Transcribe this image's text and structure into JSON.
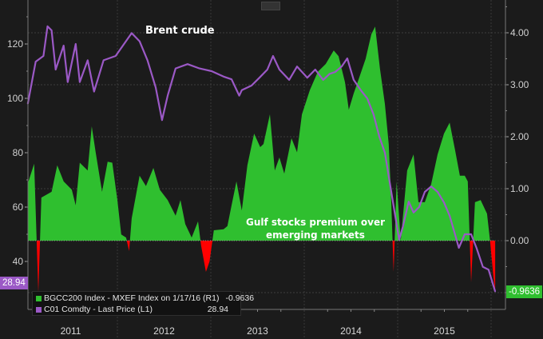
{
  "chart_data": {
    "type": "line+area",
    "title": "",
    "x_type": "date",
    "xlim": [
      "2011-01-01",
      "2016-01-31"
    ],
    "x_tick_labels": [
      "2011",
      "2012",
      "2013",
      "2014",
      "2015"
    ],
    "left_axis": {
      "ylim": [
        28,
        133
      ],
      "ticks": [
        40,
        60,
        80,
        100,
        120
      ]
    },
    "right_axis": {
      "ylim": [
        -1.32,
        4.62
      ],
      "ticks": [
        "4.00",
        "3.00",
        "2.00",
        "1.00",
        "0.00"
      ]
    },
    "grid": true,
    "annotations": [
      "Brent crude",
      "Gulf stocks premium over",
      "emerging markets"
    ],
    "series": [
      {
        "name": "BGCC200 Index - MXEF Index on 1/17/16 (R1)",
        "axis": "right",
        "type": "area",
        "color_positive": "#2fbf2f",
        "color_negative": "#ff0000",
        "last_value": "-0.9636",
        "x": [
          "2011-01-16",
          "2011-02-10",
          "2011-02-26",
          "2011-03-10",
          "2011-04-19",
          "2011-05-11",
          "2011-06-05",
          "2011-07-07",
          "2011-07-22",
          "2011-08-07",
          "2011-09-07",
          "2011-09-23",
          "2011-10-08",
          "2011-11-02",
          "2011-11-24",
          "2011-12-12",
          "2012-01-01",
          "2012-01-16",
          "2012-02-04",
          "2012-02-16",
          "2012-02-26",
          "2012-03-28",
          "2012-04-22",
          "2012-05-21",
          "2012-06-15",
          "2012-07-16",
          "2012-08-16",
          "2012-09-04",
          "2012-09-23",
          "2012-10-18",
          "2012-11-12",
          "2012-11-24",
          "2012-12-13",
          "2012-12-27",
          "2013-01-13",
          "2013-02-20",
          "2013-03-07",
          "2013-03-23",
          "2013-04-11",
          "2013-05-02",
          "2013-05-24",
          "2013-06-19",
          "2013-07-13",
          "2013-07-26",
          "2013-08-20",
          "2013-09-08",
          "2013-09-26",
          "2013-10-15",
          "2013-11-12",
          "2013-12-04",
          "2013-12-23",
          "2014-01-23",
          "2014-02-23",
          "2014-03-26",
          "2014-04-26",
          "2014-05-15",
          "2014-06-09",
          "2014-06-24",
          "2014-07-13",
          "2014-08-04",
          "2014-08-29",
          "2014-09-20",
          "2014-10-05",
          "2014-10-24",
          "2014-11-12",
          "2014-11-27",
          "2014-12-07",
          "2014-12-16",
          "2014-12-28",
          "2015-01-13",
          "2015-02-07",
          "2015-03-04",
          "2015-03-23",
          "2015-04-17",
          "2015-05-12",
          "2015-06-06",
          "2015-07-01",
          "2015-07-23",
          "2015-08-13",
          "2015-09-01",
          "2015-09-20",
          "2015-10-02",
          "2015-10-15",
          "2015-10-30",
          "2015-11-21",
          "2015-12-16",
          "2015-12-28",
          "2016-01-10",
          "2016-01-17"
        ],
        "values": [
          1.1,
          1.48,
          -1.0,
          0.83,
          0.94,
          1.45,
          1.14,
          0.98,
          0.68,
          1.5,
          1.35,
          2.2,
          1.7,
          0.94,
          1.52,
          1.5,
          0.78,
          0.12,
          0.06,
          -0.2,
          0.43,
          1.25,
          1.05,
          1.4,
          0.98,
          0.78,
          0.48,
          0.78,
          0.32,
          0.06,
          0.37,
          -0.1,
          -0.6,
          -0.4,
          0.2,
          0.22,
          0.28,
          0.68,
          1.14,
          0.58,
          1.45,
          2.06,
          1.8,
          1.86,
          2.43,
          1.35,
          1.6,
          1.29,
          1.97,
          1.7,
          2.43,
          2.9,
          3.25,
          3.4,
          3.66,
          3.55,
          3.05,
          2.52,
          2.83,
          3.14,
          3.5,
          3.97,
          4.12,
          3.3,
          2.63,
          1.86,
          0.74,
          -0.6,
          1.14,
          0.0,
          1.35,
          1.66,
          0.74,
          0.74,
          1.09,
          1.66,
          2.06,
          2.27,
          1.75,
          1.25,
          1.25,
          1.14,
          -0.8,
          0.74,
          0.78,
          0.52,
          0.0,
          -0.7,
          -0.9636
        ]
      },
      {
        "name": "C01 Comdty - Last Price (L1)",
        "axis": "left",
        "type": "line",
        "color": "#9b59c6",
        "last_value": "28.94",
        "x": [
          "2011-01-16",
          "2011-02-16",
          "2011-03-18",
          "2011-04-03",
          "2011-04-19",
          "2011-05-05",
          "2011-06-05",
          "2011-06-21",
          "2011-07-22",
          "2011-08-07",
          "2011-09-07",
          "2011-10-02",
          "2011-11-08",
          "2011-12-25",
          "2012-02-26",
          "2012-03-28",
          "2012-04-28",
          "2012-05-30",
          "2012-06-24",
          "2012-07-16",
          "2012-08-16",
          "2012-10-02",
          "2012-11-18",
          "2013-01-04",
          "2013-02-20",
          "2013-03-23",
          "2013-04-22",
          "2013-05-02",
          "2013-06-09",
          "2013-07-10",
          "2013-08-10",
          "2013-09-01",
          "2013-09-26",
          "2013-11-03",
          "2013-12-04",
          "2014-01-13",
          "2014-02-13",
          "2014-03-16",
          "2014-04-10",
          "2014-05-02",
          "2014-05-27",
          "2014-06-18",
          "2014-07-13",
          "2014-08-10",
          "2014-09-04",
          "2014-09-29",
          "2014-10-21",
          "2014-11-12",
          "2014-12-01",
          "2014-12-22",
          "2015-01-07",
          "2015-01-22",
          "2015-02-13",
          "2015-03-04",
          "2015-03-26",
          "2015-04-17",
          "2015-05-12",
          "2015-06-06",
          "2015-07-01",
          "2015-07-23",
          "2015-08-13",
          "2015-08-28",
          "2015-09-20",
          "2015-10-15",
          "2015-11-05",
          "2015-11-30",
          "2015-12-22",
          "2016-01-17"
        ],
        "values": [
          98,
          113.5,
          115.6,
          126.5,
          125,
          110.6,
          119.4,
          106,
          120,
          106,
          114,
          102.5,
          114,
          115.6,
          124,
          121,
          114,
          104,
          92,
          101,
          111,
          112.6,
          111,
          110,
          108,
          107,
          101,
          103,
          104.7,
          107.6,
          110.6,
          115.6,
          110.6,
          106.8,
          111.7,
          107.6,
          110.6,
          106.8,
          109,
          109.7,
          111.7,
          114.7,
          106.8,
          103,
          100,
          94,
          86,
          80,
          69,
          57,
          48,
          53,
          62,
          58,
          60,
          65.6,
          67.6,
          65.6,
          61.7,
          56.8,
          50,
          45,
          50,
          50,
          45,
          38,
          37,
          28.94
        ]
      }
    ]
  },
  "legend": {
    "items": [
      {
        "label": "BGCC200 Index - MXEF Index on 1/17/16 (R1)",
        "value": "-0.9636",
        "color": "#2fbf2f"
      },
      {
        "label": "C01 Comdty - Last Price (L1)",
        "value": "28.94",
        "color": "#9b59c6"
      }
    ]
  },
  "annotations": {
    "brent": "Brent crude",
    "gulf_line1": "Gulf stocks premium over",
    "gulf_line2": "emerging markets"
  },
  "tags": {
    "left": "28.94",
    "right": "-0.9636"
  },
  "colors": {
    "background": "#1b1b1b",
    "green": "#2fbf2f",
    "red": "#ff0000",
    "purple": "#9b59c6"
  }
}
